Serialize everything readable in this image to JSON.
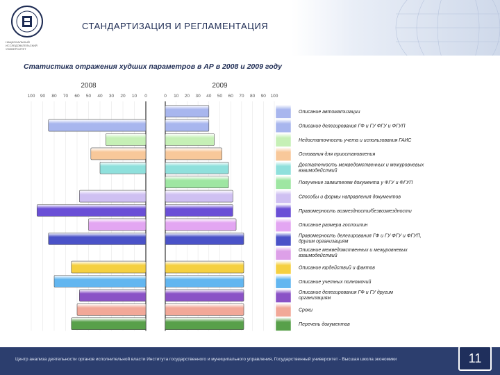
{
  "header": {
    "title": "СТАНДАРТИЗАЦИЯ И РЕГЛАМЕНТАЦИЯ",
    "logo_caption": "НАЦИОНАЛЬНЫЙ ИССЛЕДОВАТЕЛЬСКИЙ УНИВЕРСИТЕТ"
  },
  "footer": {
    "text": "Центр анализа деятельности органов исполнительной власти Института государственного и муниципального управления, Государственный университет - Высшая школа экономики",
    "page_number": "11"
  },
  "chart_data": {
    "type": "bar",
    "title": "Статистика отражения худших параметров в АР в 2008 и 2009 году",
    "panels": [
      {
        "name": "2008",
        "direction": "reversed",
        "xlim": [
          0,
          100
        ],
        "tick_labels": [
          "100",
          "90",
          "80",
          "70",
          "60",
          "50",
          "40",
          "30",
          "20",
          "10",
          "0"
        ]
      },
      {
        "name": "2009",
        "direction": "normal",
        "xlim": [
          0,
          100
        ],
        "tick_labels": [
          "0",
          "10",
          "20",
          "30",
          "40",
          "50",
          "60",
          "70",
          "80",
          "90",
          "100"
        ]
      }
    ],
    "categories": [
      "Описание автоматизации",
      "Описание делегирования ГФ и ГУ ФГУ и ФГУП",
      "Недостаточность учета и использования ГАИС",
      "Основания для приостановления",
      "Достаточность межведомственных и межуровневых взаимодействий",
      "Получение заявителем документа у ФГУ и ФГУП",
      "Способы и формы направления документов",
      "Правомерность возмездности/безвозмездности",
      "Описание размера госпошлин",
      "Правомерность делегирования ГФ и ГУ ФГУ и ФГУП, другим организациям",
      "Описание межведомственных и межуровневых взаимодействий",
      "Описание юрдействий и фактов",
      "Описание учетных полномочий",
      "Описание делегирования ГФ и ГУ другим организациям",
      "Сроки",
      "Перечень документов"
    ],
    "series": [
      {
        "name": "2008",
        "values": [
          0,
          85,
          35,
          48,
          40,
          0,
          58,
          95,
          50,
          85,
          0,
          65,
          80,
          58,
          60,
          65
        ]
      },
      {
        "name": "2009",
        "values": [
          40,
          40,
          45,
          52,
          58,
          58,
          62,
          62,
          65,
          72,
          0,
          72,
          72,
          72,
          72,
          72
        ]
      }
    ],
    "colors": [
      "#a8b6ee",
      "#a8b6ee",
      "#c6f0b6",
      "#f8c89a",
      "#8fe0dc",
      "#9ee6a2",
      "#cfc0f2",
      "#6a4fd6",
      "#e3a6f2",
      "#4a52c8",
      "#dda0e8",
      "#f5d040",
      "#62b6f0",
      "#8a52c6",
      "#f2a898",
      "#58a04a"
    ],
    "grid": true
  }
}
